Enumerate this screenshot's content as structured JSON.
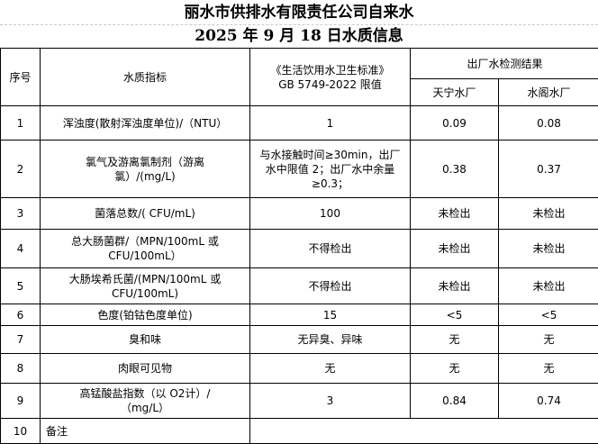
{
  "title": "丽水市供排水有限责任公司自来水",
  "subtitle": "2025 年 9 月 18 日水质信息",
  "header": {
    "no": "序号",
    "indicator": "水质指标",
    "standard_line1": "《生活饮用水卫生标准》",
    "standard_line2": "GB 5749-2022 限值",
    "results": "出厂水检测结果",
    "plant1": "天宁水厂",
    "plant2": "水阁水厂"
  },
  "rows": [
    {
      "no": "1",
      "indicator": "浑浊度(散射浑浊度单位)/（NTU）",
      "limit": "1",
      "plant1": "0.09",
      "plant2": "0.08"
    },
    {
      "no": "2",
      "indicator": "氯气及游离氯制剂（游离氯）/(mg/L)",
      "limit": "与水接触时间≥30min，出厂水中限值 2；出厂水中余量≥0.3；",
      "plant1": "0.38",
      "plant2": "0.37"
    },
    {
      "no": "3",
      "indicator": "菌落总数/( CFU/mL)",
      "limit": "100",
      "plant1": "未检出",
      "plant2": "未检出"
    },
    {
      "no": "4",
      "indicator": "总大肠菌群/（MPN/100mL 或 CFU/100mL）",
      "limit": "不得检出",
      "plant1": "未检出",
      "plant2": "未检出"
    },
    {
      "no": "5",
      "indicator": "大肠埃希氏菌/(MPN/100mL 或 CFU/100mL)",
      "limit": "不得检出",
      "plant1": "未检出",
      "plant2": "未检出"
    },
    {
      "no": "6",
      "indicator": "色度(铂钴色度单位)",
      "limit": "15",
      "plant1": "<5",
      "plant2": "<5"
    },
    {
      "no": "7",
      "indicator": "臭和味",
      "limit": "无异臭、异味",
      "plant1": "无",
      "plant2": "无"
    },
    {
      "no": "8",
      "indicator": "肉眼可见物",
      "limit": "无",
      "plant1": "无",
      "plant2": "无"
    },
    {
      "no": "9",
      "indicator": "高锰酸盐指数（以 O2计）/（mg/L）",
      "limit": "3",
      "plant1": "0.84",
      "plant2": "0.74"
    }
  ],
  "remark": {
    "no": "10",
    "label": "备注"
  }
}
